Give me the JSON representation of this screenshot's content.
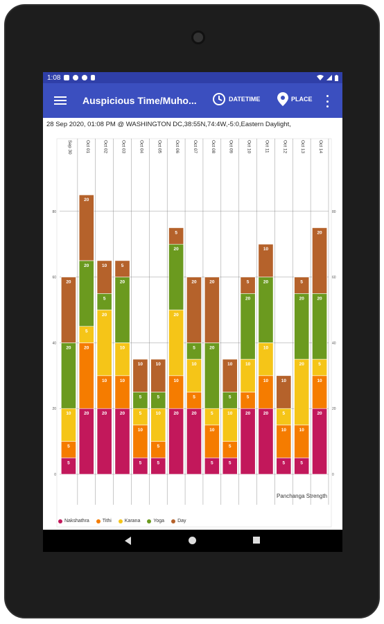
{
  "status": {
    "time": "1:08"
  },
  "appbar": {
    "title": "Auspicious Time/Muho...",
    "datetime_label": "DATETIME",
    "place_label": "PLACE"
  },
  "info": {
    "text": "28 Sep 2020, 01:08 PM @ WASHINGTON DC,38:55N,74:4W,-5:0,Eastern Daylight,"
  },
  "colors": {
    "appbar": "#3b4fbf",
    "statusbar": "#2f3fa8"
  },
  "icons": [
    "menu-icon",
    "clock-icon",
    "location-pin-icon",
    "more-vert-icon",
    "wifi-icon",
    "signal-icon",
    "battery-icon",
    "back-icon",
    "home-icon",
    "recents-icon"
  ],
  "chart_data": {
    "type": "bar",
    "stacked": true,
    "categories": [
      "Sep 30",
      "Oct 01",
      "Oct 02",
      "Oct 03",
      "Oct 04",
      "Oct 05",
      "Oct 06",
      "Oct 07",
      "Oct 08",
      "Oct 09",
      "Oct 10",
      "Oct 11",
      "Oct 12",
      "Oct 13",
      "Oct 14"
    ],
    "series": [
      {
        "name": "Nakshathra",
        "color": "#c2185b",
        "values": [
          5,
          20,
          20,
          20,
          5,
          5,
          20,
          20,
          5,
          5,
          20,
          20,
          5,
          5,
          20
        ]
      },
      {
        "name": "Tithi",
        "color": "#f57c00",
        "values": [
          5,
          20,
          10,
          10,
          10,
          5,
          10,
          5,
          10,
          5,
          5,
          10,
          10,
          10,
          10
        ]
      },
      {
        "name": "Karana",
        "color": "#f5c518",
        "values": [
          10,
          5,
          20,
          10,
          5,
          10,
          20,
          10,
          5,
          10,
          10,
          10,
          5,
          20,
          5
        ]
      },
      {
        "name": "Yoga",
        "color": "#6b9a1f",
        "values": [
          20,
          20,
          5,
          20,
          5,
          5,
          20,
          5,
          20,
          5,
          20,
          20,
          0,
          20,
          20
        ]
      },
      {
        "name": "Day",
        "color": "#b5622b",
        "values": [
          20,
          20,
          10,
          5,
          10,
          10,
          5,
          20,
          20,
          10,
          5,
          10,
          10,
          5,
          20
        ]
      }
    ],
    "title": "",
    "xlabel": "",
    "ylabel": "",
    "yticks": [
      0,
      20,
      40,
      60,
      80
    ],
    "ylim": [
      0,
      100
    ],
    "annotation": "Panchanga Strength",
    "legend_position": "bottom-left",
    "grid": true
  }
}
